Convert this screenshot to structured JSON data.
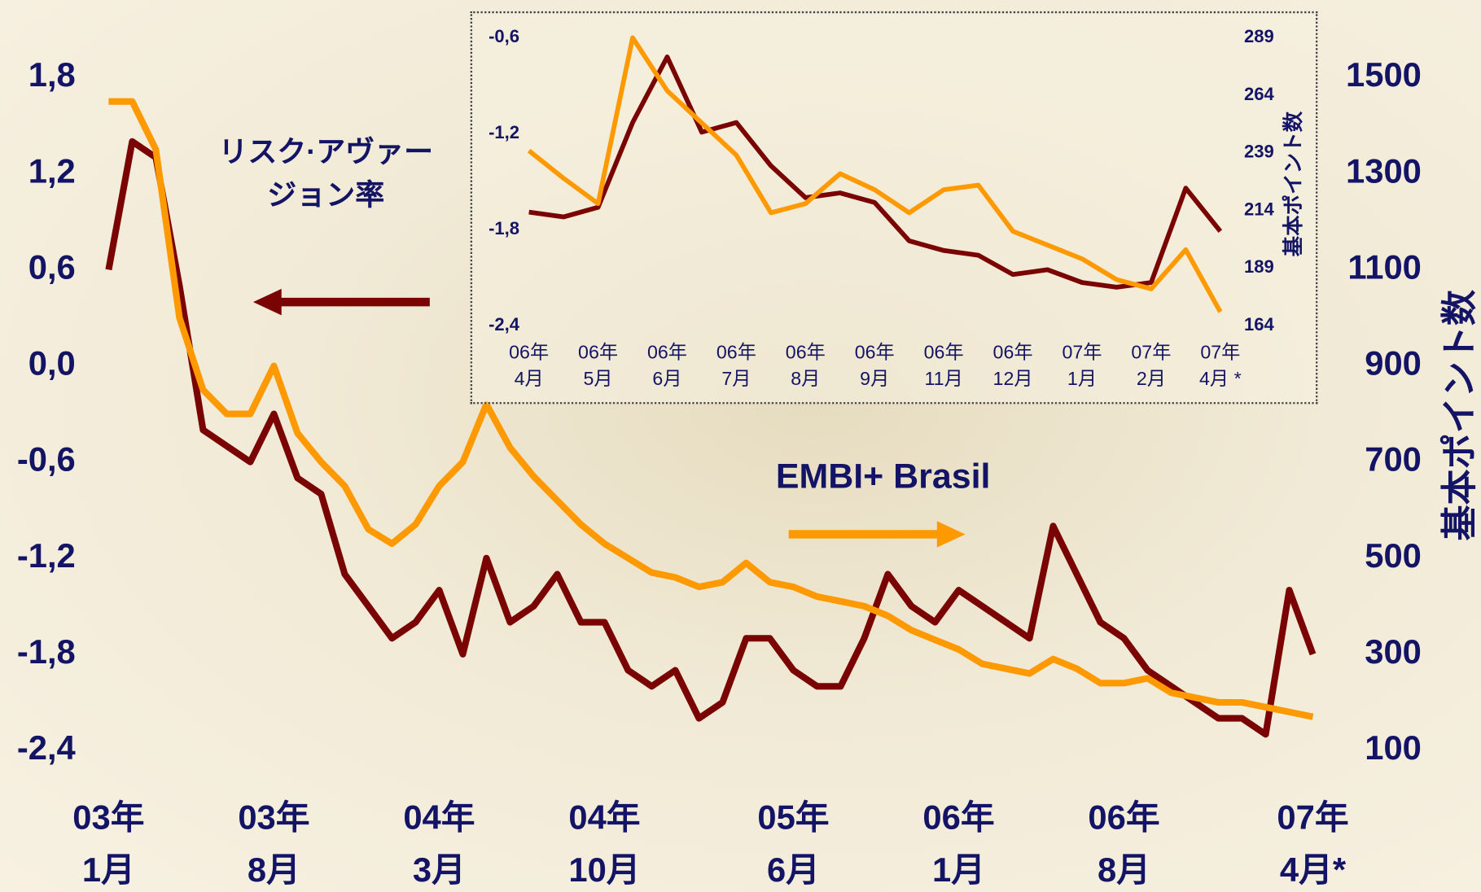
{
  "chart_data": [
    {
      "type": "line",
      "categories": [
        "03年\n1月",
        null,
        null,
        null,
        null,
        null,
        null,
        "03年\n8月",
        null,
        null,
        null,
        null,
        null,
        null,
        "04年\n3月",
        null,
        null,
        null,
        null,
        null,
        null,
        "04年\n10月",
        null,
        null,
        null,
        null,
        null,
        null,
        null,
        "05年\n6月",
        null,
        null,
        null,
        null,
        null,
        null,
        "06年\n1月",
        null,
        null,
        null,
        null,
        null,
        null,
        "06年\n8月",
        null,
        null,
        null,
        null,
        null,
        null,
        null,
        "07年\n4月*"
      ],
      "series": [
        {
          "name": "リスク·アヴァー\nジョン率",
          "color": "#7a0404",
          "values": [
            0.6,
            1.4,
            1.3,
            0.5,
            -0.4,
            -0.5,
            -0.6,
            -0.3,
            -0.7,
            -0.8,
            -1.3,
            -1.5,
            -1.7,
            -1.6,
            -1.4,
            -1.8,
            -1.2,
            -1.6,
            -1.5,
            -1.3,
            -1.6,
            -1.6,
            -1.9,
            -2.0,
            -1.9,
            -2.2,
            -2.1,
            -1.7,
            -1.7,
            -1.9,
            -2.0,
            -2.0,
            -1.7,
            -1.3,
            -1.5,
            -1.6,
            -1.4,
            -1.5,
            -1.6,
            -1.7,
            -1.0,
            -1.3,
            -1.6,
            -1.7,
            -1.9,
            -2.0,
            -2.1,
            -2.2,
            -2.2,
            -2.3,
            -1.4,
            -1.8
          ]
        },
        {
          "name": "EMBI+ Brasil",
          "color": "#ff9900",
          "axis": "y2",
          "values": [
            1450,
            1450,
            1350,
            1000,
            850,
            800,
            800,
            900,
            760,
            700,
            650,
            560,
            530,
            570,
            650,
            700,
            820,
            730,
            670,
            620,
            570,
            530,
            500,
            470,
            460,
            440,
            450,
            490,
            450,
            440,
            420,
            410,
            400,
            380,
            350,
            330,
            310,
            280,
            270,
            260,
            290,
            270,
            240,
            240,
            250,
            220,
            210,
            200,
            200,
            190,
            180,
            170
          ]
        }
      ],
      "ylim": [
        -2.4,
        1.8
      ],
      "yticks": [
        {
          "value": 1.8,
          "label": "1,8"
        },
        {
          "value": 1.2,
          "label": "1,2"
        },
        {
          "value": 0.6,
          "label": "0,6"
        },
        {
          "value": 0,
          "label": "0,0"
        },
        {
          "value": -0.6,
          "label": "-0,6"
        },
        {
          "value": -1.2,
          "label": "-1,2"
        },
        {
          "value": -1.8,
          "label": "-1,8"
        },
        {
          "value": -2.4,
          "label": "-2,4"
        }
      ],
      "y2lim": [
        100,
        1500
      ],
      "y2ticks": [
        1500,
        1300,
        1100,
        900,
        700,
        500,
        300,
        100
      ],
      "y2label": "基本ポイント数"
    },
    {
      "type": "line",
      "categories": [
        "06年\n4月",
        null,
        "06年\n5月",
        null,
        "06年\n6月",
        null,
        "06年\n7月",
        null,
        "06年\n8月",
        null,
        "06年\n9月",
        null,
        "06年\n11月",
        null,
        "06年\n12月",
        null,
        "07年\n1月",
        null,
        "07年\n2月",
        null,
        "07年\n4月 *"
      ],
      "series": [
        {
          "color": "#7a0404",
          "values": [
            -1.69,
            -1.72,
            -1.66,
            -1.13,
            -0.72,
            -1.19,
            -1.13,
            -1.4,
            -1.6,
            -1.57,
            -1.63,
            -1.87,
            -1.93,
            -1.96,
            -2.08,
            -2.05,
            -2.13,
            -2.16,
            -2.13,
            -1.54,
            -1.81
          ]
        },
        {
          "color": "#ff9900",
          "axis": "y2",
          "values": [
            240,
            228,
            217,
            289,
            266,
            252,
            238,
            213,
            217,
            230,
            223,
            213,
            223,
            225,
            205,
            199,
            193,
            184,
            180,
            197,
            170
          ]
        }
      ],
      "ylim": [
        -2.4,
        -0.6
      ],
      "yticks": [
        {
          "value": -0.6,
          "label": "-0,6"
        },
        {
          "value": -1.2,
          "label": "-1,2"
        },
        {
          "value": -1.8,
          "label": "-1,8"
        },
        {
          "value": -2.4,
          "label": "-2,4"
        }
      ],
      "y2lim": [
        164,
        289
      ],
      "y2ticks": [
        289,
        264,
        239,
        214,
        189,
        164
      ],
      "y2label": "基本ポイント数"
    }
  ]
}
